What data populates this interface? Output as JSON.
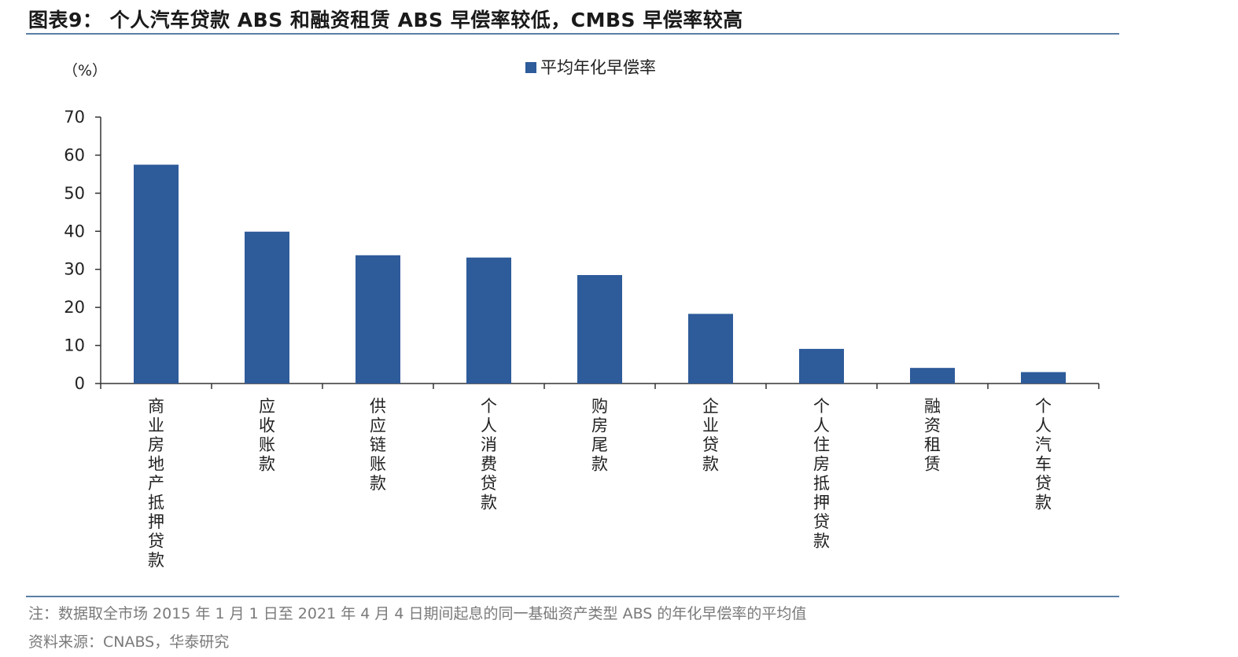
{
  "header": {
    "title": "图表9： 个人汽车贷款 ABS 和融资租赁 ABS 早偿率较低，CMBS 早偿率较高"
  },
  "footer": {
    "note": "注：数据取全市场 2015 年 1 月 1 日至 2021 年 4 月 4 日期间起息的同一基础资产类型 ABS 的年化早偿率的平均值",
    "source": "资料来源：CNABS，华泰研究"
  },
  "colors": {
    "bar": "#2e5b9a",
    "rule": "#5a7fa6",
    "axis": "#333333"
  },
  "chart_data": {
    "type": "bar",
    "unit_label": "（%）",
    "categories": [
      "商业房地产抵押贷款",
      "应收账款",
      "供应链账款",
      "个人消费贷款",
      "购房尾款",
      "企业贷款",
      "个人住房抵押贷款",
      "融资租赁",
      "个人汽车贷款"
    ],
    "series": [
      {
        "name": "平均年化早偿率",
        "values": [
          57.5,
          39.9,
          33.7,
          33.1,
          28.5,
          18.3,
          9.1,
          4.1,
          3.0
        ]
      }
    ],
    "ylim": [
      0,
      70
    ],
    "yticks": [
      0,
      10,
      20,
      30,
      40,
      50,
      60,
      70
    ],
    "grid": false,
    "legend_position": "top-center"
  }
}
